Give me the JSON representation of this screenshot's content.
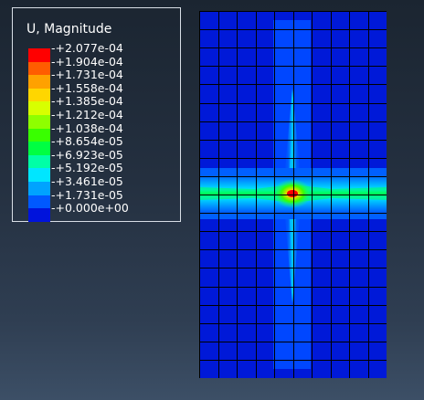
{
  "legend": {
    "title": "U, Magnitude",
    "colors": [
      "#ff0000",
      "#ff5c00",
      "#ffa100",
      "#ffd600",
      "#d8ff00",
      "#8eff00",
      "#39ff00",
      "#00ff42",
      "#00ffa6",
      "#00e6ff",
      "#00a3ff",
      "#0059ff",
      "#0013dc"
    ],
    "labels": [
      "+2.077e-04",
      "+1.904e-04",
      "+1.731e-04",
      "+1.558e-04",
      "+1.385e-04",
      "+1.212e-04",
      "+1.038e-04",
      "+8.654e-05",
      "+6.923e-05",
      "+5.192e-05",
      "+3.461e-05",
      "+1.731e-05",
      "+0.000e+00"
    ]
  },
  "model": {
    "mesh_columns": 10,
    "mesh_rows": 20,
    "background_color": "#0019d8",
    "mesh_line_color": "#000000"
  }
}
